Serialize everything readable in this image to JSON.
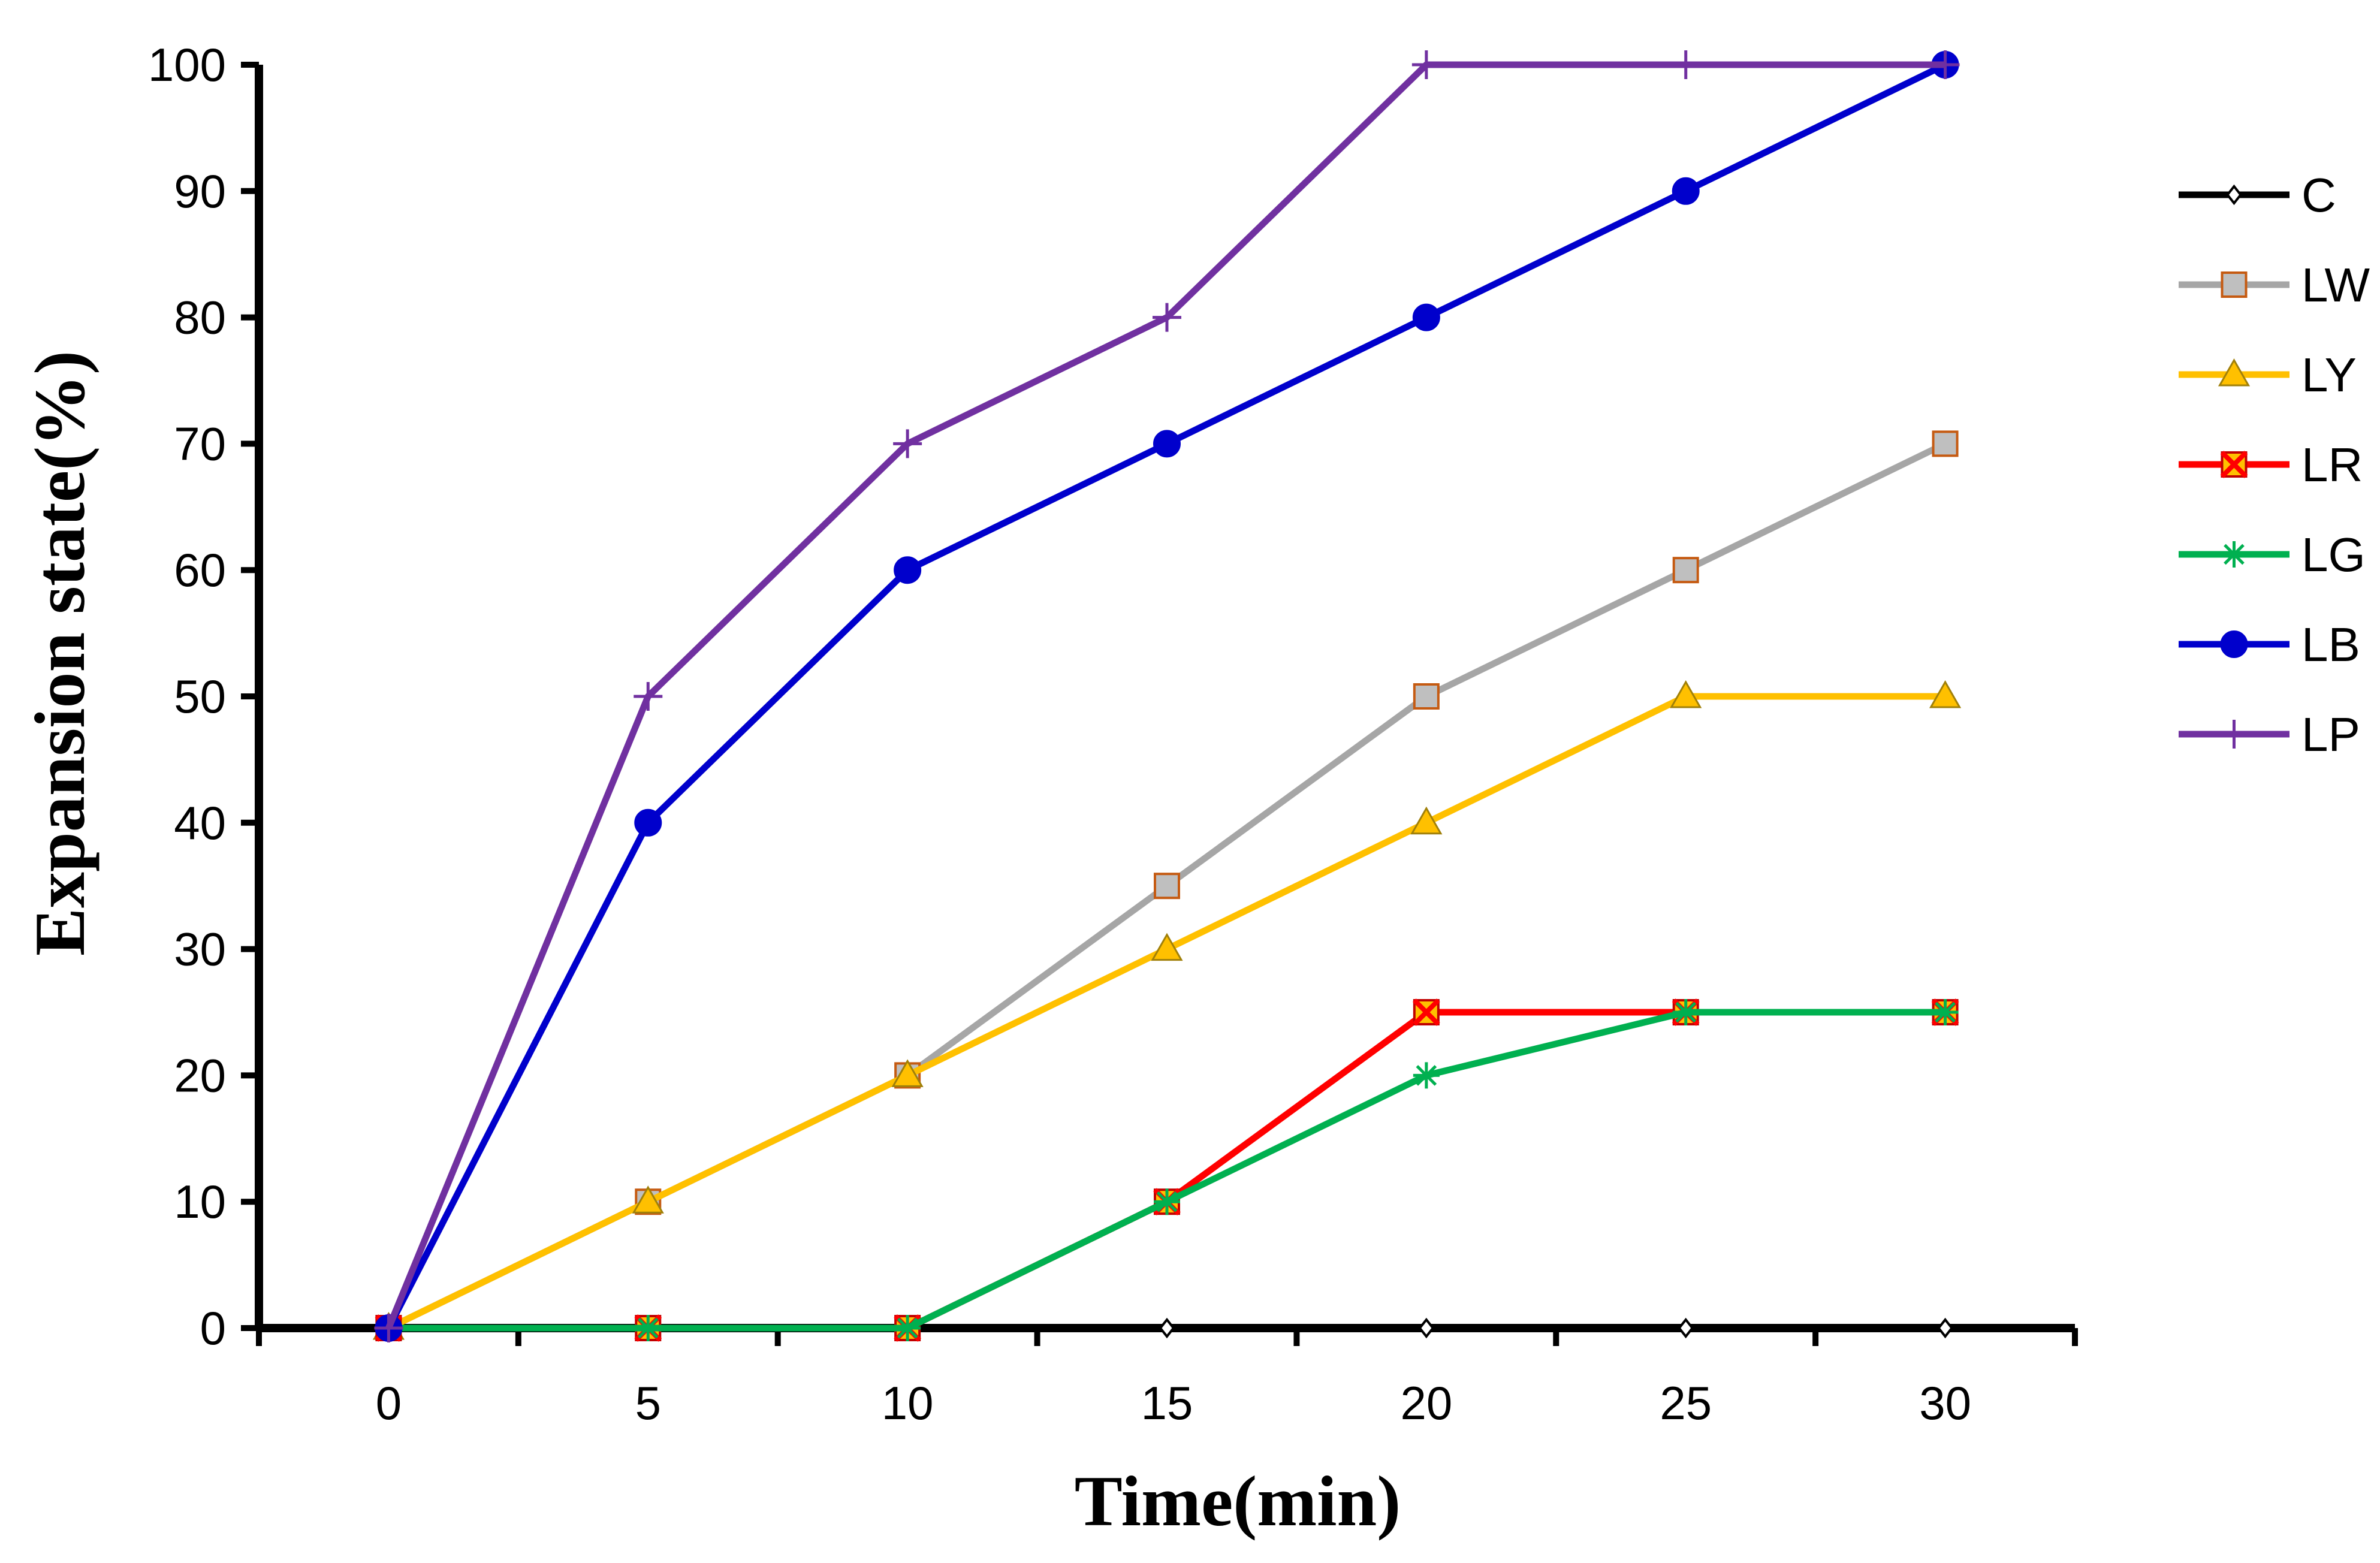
{
  "chart_data": {
    "type": "line",
    "title": "",
    "xlabel": "Time(min)",
    "ylabel": "Expansion state(%)",
    "x": [
      0,
      5,
      10,
      15,
      20,
      25,
      30
    ],
    "xlim": [
      -2.5,
      32.5
    ],
    "ylim": [
      0,
      100
    ],
    "xticks": [
      "0",
      "5",
      "10",
      "15",
      "20",
      "25",
      "30"
    ],
    "yticks": [
      "0",
      "10",
      "20",
      "30",
      "40",
      "50",
      "60",
      "70",
      "80",
      "90",
      "100"
    ],
    "grid": false,
    "legend_position": "right",
    "series": [
      {
        "name": "C",
        "color": "#000000",
        "marker": "diamond",
        "values": [
          0,
          0,
          0,
          0,
          0,
          0,
          0
        ]
      },
      {
        "name": "LW",
        "color": "#A6A6A6",
        "marker": "square",
        "values": [
          0,
          10,
          20,
          35,
          50,
          60,
          70
        ]
      },
      {
        "name": "LY",
        "color": "#FFC000",
        "marker": "triangle",
        "values": [
          0,
          10,
          20,
          30,
          40,
          50,
          50
        ]
      },
      {
        "name": "LR",
        "color": "#FF0000",
        "marker": "xsquare",
        "values": [
          0,
          0,
          0,
          10,
          25,
          25,
          25
        ]
      },
      {
        "name": "LG",
        "color": "#00B050",
        "marker": "asterisk",
        "values": [
          0,
          0,
          0,
          10,
          20,
          25,
          25
        ]
      },
      {
        "name": "LB",
        "color": "#0000CC",
        "marker": "circle",
        "values": [
          0,
          40,
          60,
          70,
          80,
          90,
          100
        ]
      },
      {
        "name": "LP",
        "color": "#7030A0",
        "marker": "plus",
        "values": [
          0,
          50,
          70,
          80,
          100,
          100,
          100
        ]
      }
    ]
  }
}
